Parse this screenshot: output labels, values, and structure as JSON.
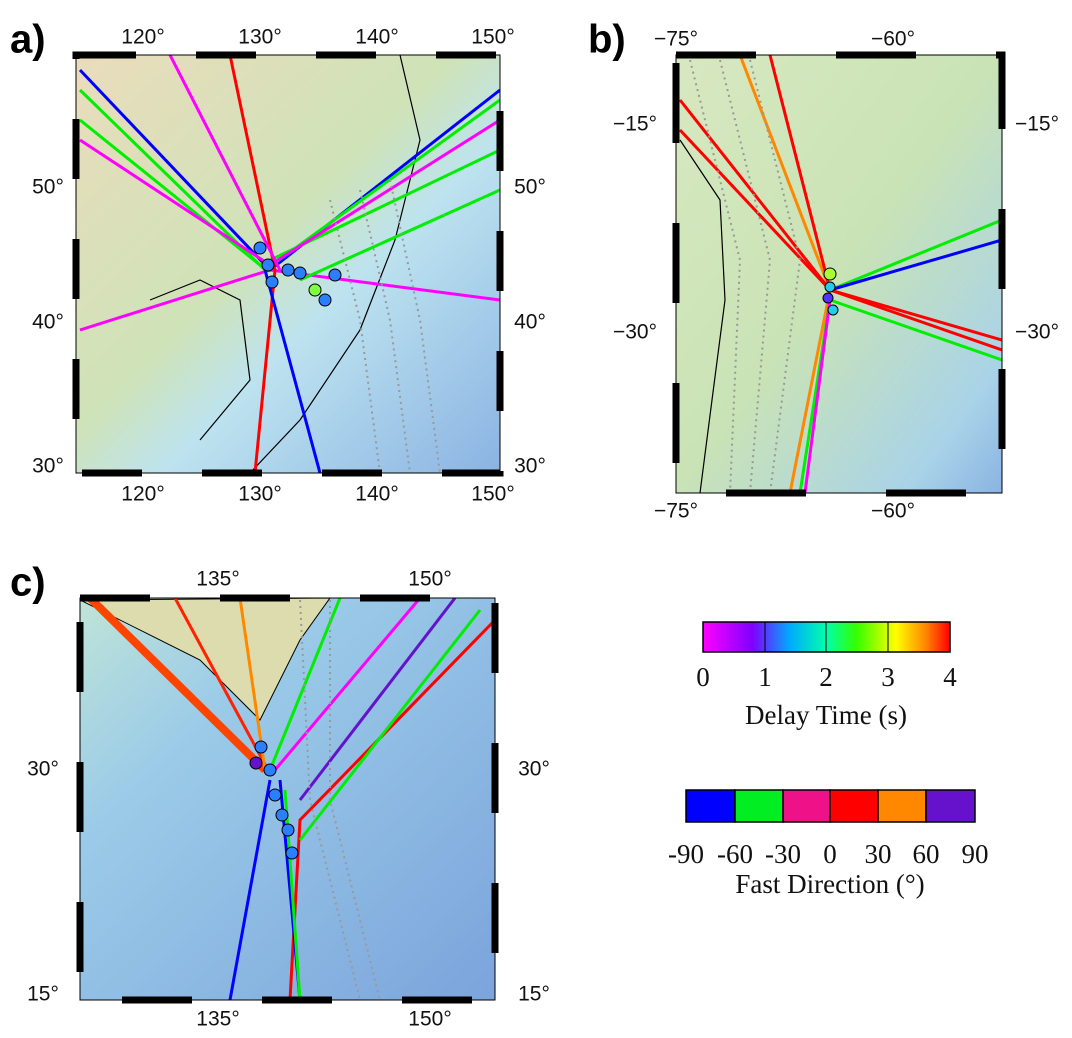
{
  "panels": [
    {
      "label": "a)",
      "top_ticks": [
        "120°",
        "130°",
        "140°",
        "150°"
      ],
      "bottom_ticks": [
        "120°",
        "130°",
        "140°",
        "150°"
      ],
      "left_ticks": [
        "50°",
        "40°",
        "30°"
      ],
      "right_ticks": [
        "50°",
        "40°",
        "30°"
      ]
    },
    {
      "label": "b)",
      "top_ticks": [
        "−75°",
        "−60°"
      ],
      "bottom_ticks": [
        "−75°",
        "−60°"
      ],
      "left_ticks": [
        "−15°",
        "−30°"
      ],
      "right_ticks": [
        "−15°",
        "−30°"
      ]
    },
    {
      "label": "c)",
      "top_ticks": [
        "135°",
        "150°"
      ],
      "bottom_ticks": [
        "135°",
        "150°"
      ],
      "left_ticks": [
        "30°",
        "15°"
      ],
      "right_ticks": [
        "30°",
        "15°"
      ]
    }
  ],
  "delay_colorbar": {
    "ticks": [
      "0",
      "1",
      "2",
      "3",
      "4"
    ],
    "label": "Delay Time (s)"
  },
  "direction_colorbar": {
    "ticks": [
      "-90",
      "-60",
      "-30",
      "0",
      "30",
      "60",
      "90"
    ],
    "label": "Fast Direction (°)"
  }
}
